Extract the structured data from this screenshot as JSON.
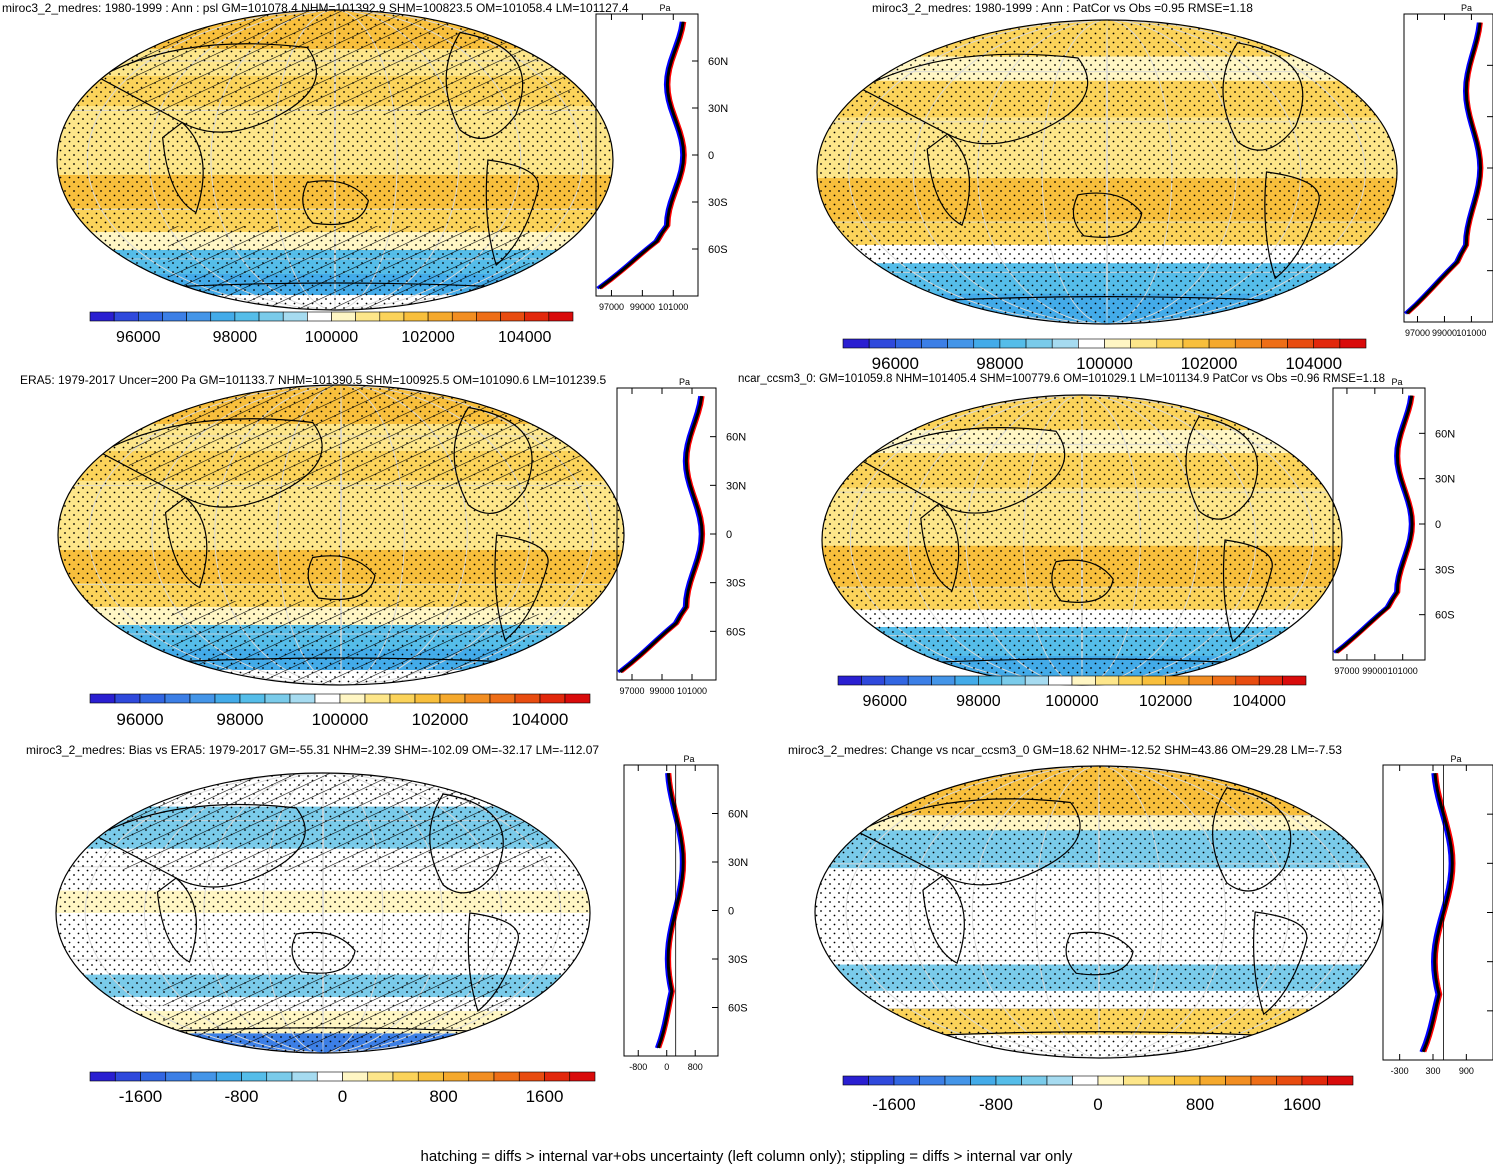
{
  "figure": {
    "footer_caption": "hatching = diffs > internal var+obs uncertainty (left column only); stippling = diffs > internal var only"
  },
  "panels": [
    {
      "id": "model-mean",
      "title": "miroc3_2_medres: 1980-1999 : Ann : psl GM=101078.4 NHM=101392.9 SHM=100823.5 OM=101058.4 LM=101127.4",
      "colorbar": {
        "labels": [
          "96000",
          "98000",
          "100000",
          "102000",
          "104000"
        ]
      },
      "zonal_axis": {
        "unit_label": "Pa",
        "x_ticks": [
          "97000",
          "99000",
          "101000"
        ],
        "lat_ticks": [
          "60N",
          "30N",
          "0",
          "30S",
          "60S"
        ]
      }
    },
    {
      "id": "obs-ensemble-mean",
      "title": "miroc3_2_medres: 1980-1999 : Ann : PatCor vs Obs =0.95 RMSE=1.18",
      "colorbar": {
        "labels": [
          "96000",
          "98000",
          "100000",
          "102000",
          "104000"
        ]
      },
      "zonal_axis": {
        "unit_label": "Pa",
        "x_ticks": [
          "97000",
          "99000",
          "101000"
        ],
        "lat_ticks": []
      }
    },
    {
      "id": "era5-reference",
      "title": "ERA5: 1979-2017 Uncer=200 Pa GM=101133.7 NHM=101390.5 SHM=100925.5 OM=101090.6 LM=101239.5",
      "colorbar": {
        "labels": [
          "96000",
          "98000",
          "100000",
          "102000",
          "104000"
        ]
      },
      "zonal_axis": {
        "unit_label": "Pa",
        "x_ticks": [
          "97000",
          "99000",
          "101000"
        ],
        "lat_ticks": [
          "60N",
          "30N",
          "0",
          "30S",
          "60S"
        ]
      }
    },
    {
      "id": "ncar-reference",
      "title": "ncar_ccsm3_0: GM=101059.8 NHM=101405.4 SHM=100779.6 OM=101029.1 LM=101134.9 PatCor vs Obs =0.96 RMSE=1.18",
      "colorbar": {
        "labels": [
          "96000",
          "98000",
          "100000",
          "102000",
          "104000"
        ]
      },
      "zonal_axis": {
        "unit_label": "Pa",
        "x_ticks": [
          "97000",
          "99000",
          "101000"
        ],
        "lat_ticks": [
          "60N",
          "30N",
          "0",
          "30S",
          "60S"
        ]
      }
    },
    {
      "id": "bias",
      "title": "miroc3_2_medres: Bias vs ERA5: 1979-2017 GM=-55.31 NHM=2.39 SHM=-102.09 OM=-32.17 LM=-112.07",
      "colorbar": {
        "labels": [
          "-1600",
          "-800",
          "0",
          "800",
          "1600"
        ]
      },
      "zonal_axis": {
        "unit_label": "Pa",
        "x_ticks": [
          "-800",
          "0",
          "800"
        ],
        "lat_ticks": [
          "60N",
          "30N",
          "0",
          "30S",
          "60S"
        ]
      }
    },
    {
      "id": "change",
      "title": "miroc3_2_medres: Change vs ncar_ccsm3_0 GM=18.62 NHM=-12.52 SHM=43.86 OM=29.28 LM=-7.53",
      "colorbar": {
        "labels": [
          "-1600",
          "-800",
          "0",
          "800",
          "1600"
        ]
      },
      "zonal_axis": {
        "unit_label": "Pa",
        "x_ticks": [
          "-300",
          "300",
          "900"
        ],
        "lat_ticks": []
      }
    }
  ],
  "colors": {
    "diverging_ramp": [
      "#2a1fd1",
      "#2f49dc",
      "#3266e2",
      "#3c7fe6",
      "#4495e8",
      "#43abe9",
      "#55bde9",
      "#7acbea",
      "#a6dbf0",
      "#ffffff",
      "#fff6c4",
      "#fde68a",
      "#fbd35a",
      "#f8bf3c",
      "#f5a92d",
      "#f28e22",
      "#ee6e17",
      "#e84c10",
      "#e2280c",
      "#d90b0b"
    ],
    "obs_line": "#0000ff",
    "model_line": "#ff0000",
    "ref_line": "#000000"
  }
}
